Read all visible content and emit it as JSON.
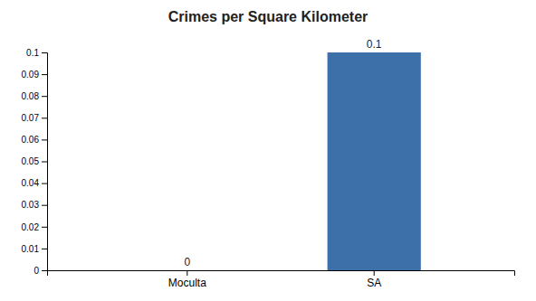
{
  "chart_data": {
    "type": "bar",
    "title": "Crimes per Square Kilometer",
    "categories": [
      "Moculta",
      "SA"
    ],
    "values": [
      0.0,
      0.1
    ],
    "colors": [
      "#3d6fa8",
      "#3d6fa8"
    ],
    "ylim": [
      0,
      0.1
    ],
    "yticks": [
      0,
      0.01,
      0.02,
      0.03,
      0.04,
      0.05,
      0.06,
      0.07,
      0.08,
      0.09,
      0.1
    ],
    "grid": false,
    "data_labels": true
  }
}
